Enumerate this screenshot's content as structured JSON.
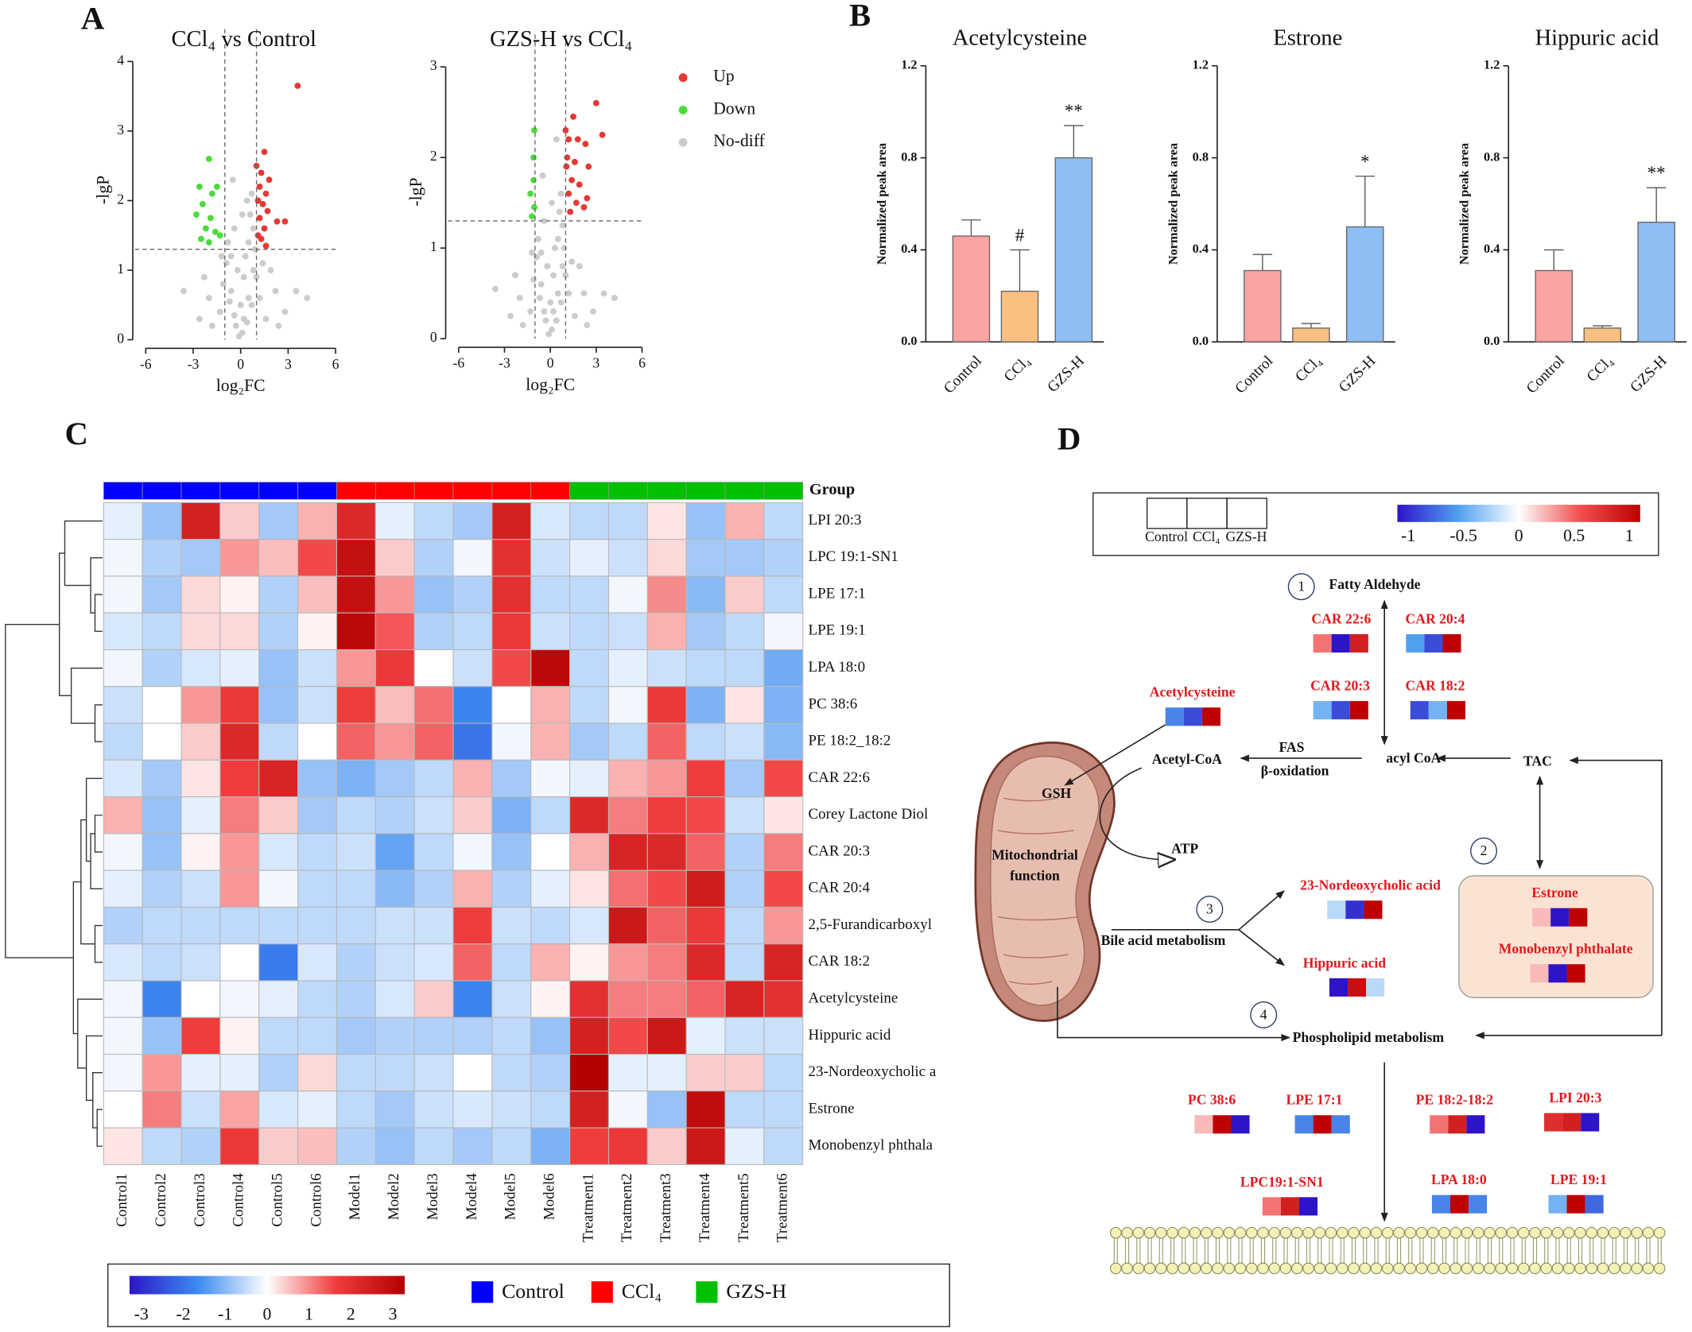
{
  "panel_labels": [
    "A",
    "B",
    "C",
    "D"
  ],
  "chart_data": [
    {
      "type": "scatter",
      "title": "CCl₄ vs Control",
      "x_label": "log₂FC",
      "y_label": "-lgP",
      "xlim": [
        -6,
        6
      ],
      "xticks": [
        -6,
        -3,
        0,
        3,
        6
      ],
      "ylim": [
        0,
        4
      ],
      "yticks": [
        0,
        1,
        2,
        3,
        4
      ],
      "thresholds": {
        "x": [
          -1,
          1
        ],
        "y": 1.3
      },
      "series": [
        {
          "color": "#cccccc",
          "x": [
            -0.3,
            0.2,
            0.5,
            -0.6,
            0.8,
            -0.9,
            0.1,
            -0.1,
            0.4,
            -0.4,
            0.7,
            -0.7,
            1.0,
            -1.1,
            0.9,
            -0.8,
            0.6,
            -0.5,
            0.7,
            -0.4,
            0.3,
            1.2,
            -1.3,
            1.6,
            -1.8,
            2.2,
            -2.0,
            2.8,
            3.5,
            4.2,
            -3.6,
            -2.6,
            0,
            0.2,
            -0.2,
            0.5,
            -0.6,
            0.8,
            1.4,
            -1.2,
            0.1,
            2.4,
            -2.3,
            1.9,
            0.4
          ],
          "values": [
            0.2,
            0.3,
            0.6,
            0.7,
            1.0,
            1.1,
            0.1,
            0.05,
            0.25,
            0.35,
            0.5,
            0.55,
            0.9,
            0.8,
            1.3,
            1.4,
            1.8,
            2.3,
            2.1,
            1.6,
            1.2,
            0.6,
            0.4,
            0.3,
            0.2,
            0.7,
            0.6,
            0.4,
            0.7,
            0.6,
            0.7,
            0.3,
            0.5,
            0.9,
            1.0,
            1.4,
            1.2,
            1.6,
            1.1,
            1.2,
            1.8,
            0.2,
            0.9,
            1.0,
            2.0
          ]
        },
        {
          "color": "#e53935",
          "x": [
            3.6,
            1.5,
            1.0,
            1.3,
            1.8,
            1.2,
            1.6,
            1.1,
            1.4,
            1.7,
            1.2,
            2.3,
            1.5,
            1.1,
            2.8,
            1.6,
            1.3
          ],
          "values": [
            3.65,
            2.7,
            2.5,
            2.4,
            2.3,
            2.2,
            2.1,
            2.0,
            1.95,
            1.85,
            1.75,
            1.7,
            1.6,
            1.5,
            1.7,
            1.35,
            1.45
          ]
        },
        {
          "color": "#4cdb3a",
          "x": [
            -2.0,
            -2.6,
            -1.8,
            -2.4,
            -1.5,
            -2.8,
            -1.9,
            -2.2,
            -1.6,
            -2.5,
            -1.3,
            -2.0
          ],
          "values": [
            2.6,
            2.2,
            2.1,
            1.95,
            2.2,
            1.8,
            1.75,
            1.6,
            1.55,
            1.45,
            1.5,
            1.4
          ]
        }
      ]
    },
    {
      "type": "scatter",
      "title": "GZS-H vs CCl₄",
      "x_label": "log₂FC",
      "y_label": "-lgP",
      "xlim": [
        -6,
        6
      ],
      "xticks": [
        -6,
        -3,
        0,
        3,
        6
      ],
      "ylim": [
        0,
        3
      ],
      "yticks": [
        0,
        1,
        2,
        3
      ],
      "thresholds": {
        "x": [
          -1,
          1
        ],
        "y": 1.3
      },
      "legend": "right",
      "series": [
        {
          "name": "Up",
          "color": "#e53935",
          "x": [
            3.0,
            1.5,
            3.4,
            1.0,
            1.2,
            1.8,
            2.3,
            1.1,
            1.6,
            2.5,
            1.05,
            1.4,
            1.9,
            2.4,
            1.2,
            1.7,
            2.2,
            1.3
          ],
          "values": [
            2.6,
            2.45,
            2.25,
            2.3,
            2.2,
            2.2,
            2.15,
            2.0,
            1.95,
            1.9,
            1.9,
            1.75,
            1.7,
            1.55,
            1.6,
            1.5,
            1.45,
            1.4
          ]
        },
        {
          "name": "Down",
          "color": "#4cdb3a",
          "x": [
            -1.05,
            -1.1,
            -1.1,
            -1.3,
            -1.05,
            -1.2
          ],
          "values": [
            2.3,
            2.0,
            1.75,
            1.6,
            1.45,
            1.35
          ]
        },
        {
          "name": "No-diff",
          "color": "#cccccc",
          "x": [
            -0.3,
            0.2,
            0.5,
            -0.6,
            0.8,
            -0.9,
            0.1,
            -0.1,
            0.4,
            -0.4,
            0.7,
            -0.7,
            1.0,
            -1.1,
            0.9,
            -0.8,
            0.6,
            -0.5,
            0.7,
            -0.4,
            0.3,
            1.2,
            -1.3,
            1.6,
            -1.8,
            2.2,
            -2.0,
            2.8,
            3.5,
            4.2,
            -3.6,
            -2.6,
            0,
            0.2,
            -0.2,
            0.5,
            -0.6,
            0.8,
            1.4,
            -1.2,
            0.1,
            2.4,
            -2.3,
            1.9,
            0.4
          ],
          "values": [
            0.2,
            0.3,
            0.5,
            0.6,
            0.8,
            0.9,
            0.1,
            0.05,
            0.2,
            0.3,
            0.4,
            0.45,
            0.7,
            0.65,
            1.0,
            1.1,
            1.4,
            1.8,
            1.6,
            1.3,
            1.0,
            0.5,
            0.3,
            0.25,
            0.15,
            0.5,
            0.45,
            0.3,
            0.5,
            0.45,
            0.55,
            0.25,
            0.4,
            0.7,
            0.8,
            1.1,
            0.95,
            1.25,
            0.85,
            0.95,
            1.5,
            0.15,
            0.7,
            0.8,
            2.2
          ]
        }
      ]
    },
    {
      "type": "bar",
      "title": "Acetylcysteine",
      "y_label": "Normalized peak area",
      "categories": [
        "Control",
        "CCl₄",
        "GZS-H"
      ],
      "values": [
        0.46,
        0.22,
        0.8
      ],
      "errors": [
        0.07,
        0.18,
        0.14
      ],
      "significance": [
        null,
        "#",
        "**"
      ],
      "colors": [
        "#f9a3a3",
        "#fbbf80",
        "#8fbef5"
      ],
      "ylim": [
        0,
        1.2
      ],
      "yticks": [
        {
          "value": 0,
          "label": "0.0"
        },
        0.4,
        0.8,
        1.2
      ]
    },
    {
      "type": "bar",
      "title": "Estrone",
      "y_label": "Normalized peak area",
      "categories": [
        "Control",
        "CCl₄",
        "GZS-H"
      ],
      "values": [
        0.31,
        0.06,
        0.5
      ],
      "errors": [
        0.07,
        0.02,
        0.22
      ],
      "significance": [
        null,
        null,
        "*"
      ],
      "colors": [
        "#f9a3a3",
        "#fbbf80",
        "#8fbef5"
      ],
      "ylim": [
        0,
        1.2
      ],
      "yticks": [
        {
          "value": 0,
          "label": "0.0"
        },
        0.4,
        0.8,
        1.2
      ]
    },
    {
      "type": "bar",
      "title": "Hippuric acid",
      "y_label": "Normalized peak area",
      "categories": [
        "Control",
        "CCl₄",
        "GZS-H"
      ],
      "values": [
        0.31,
        0.06,
        0.52
      ],
      "errors": [
        0.09,
        0.01,
        0.15
      ],
      "significance": [
        null,
        null,
        "**"
      ],
      "colors": [
        "#f9a3a3",
        "#fbbf80",
        "#8fbef5"
      ],
      "ylim": [
        0,
        1.2
      ],
      "yticks": [
        {
          "value": 0,
          "label": "0.0"
        },
        0.4,
        0.8,
        1.2
      ]
    },
    {
      "type": "heatmap",
      "group_label": "Group",
      "groups": [
        {
          "name": "Control",
          "color": "#0000ff",
          "columns": [
            "Control1",
            "Control2",
            "Control3",
            "Control4",
            "Control5",
            "Control6"
          ]
        },
        {
          "name": "CCl₄",
          "color": "#ff0000",
          "columns": [
            "Model1",
            "Model2",
            "Model3",
            "Model4",
            "Model5",
            "Model6"
          ]
        },
        {
          "name": "GZS-H",
          "color": "#00c000",
          "columns": [
            "Treatment1",
            "Treatment2",
            "Treatment3",
            "Treatment4",
            "Treatment5",
            "Treatment6"
          ]
        }
      ],
      "rows": [
        "LPI 20:3",
        "LPC 19:1-SN1",
        "LPE 17:1",
        "LPE 19:1",
        "LPA 18:0",
        "PC 38:6",
        "PE 18:2_18:2",
        "CAR 22:6",
        "Corey Lactone Diol",
        "CAR 20:3",
        "CAR 20:4",
        "2,5-Furandicarboxyl",
        "CAR 18:2",
        "Acetylcysteine",
        "Hippuric acid",
        "23-Nordeoxycholic a",
        "Estrone",
        "Monobenzyl phthala"
      ],
      "values": [
        [
          -0.2,
          -0.8,
          2.2,
          0.4,
          -0.7,
          0.6,
          2,
          -0.2,
          -0.5,
          -0.7,
          2.2,
          -0.3,
          -0.5,
          -0.5,
          0.2,
          -0.8,
          0.6,
          -0.5
        ],
        [
          -0.1,
          -0.6,
          -0.7,
          0.8,
          0.5,
          1.4,
          2.6,
          0.4,
          -0.6,
          -0.1,
          1.8,
          -0.4,
          -0.2,
          -0.4,
          0.3,
          -0.7,
          -0.7,
          -0.6
        ],
        [
          -0.1,
          -0.7,
          0.3,
          0.1,
          -0.6,
          0.5,
          2.6,
          0.8,
          -0.8,
          -0.6,
          1.8,
          -0.5,
          -0.5,
          -0.1,
          0.9,
          -0.9,
          0.4,
          -0.5
        ],
        [
          -0.3,
          -0.5,
          0.3,
          0.3,
          -0.6,
          0.1,
          2.8,
          1.3,
          -0.6,
          -0.5,
          1.6,
          -0.4,
          -0.5,
          -0.4,
          0.6,
          -0.7,
          -0.5,
          -0.1
        ],
        [
          -0.1,
          -0.6,
          -0.3,
          -0.2,
          -0.8,
          -0.4,
          0.8,
          1.6,
          0,
          -0.4,
          1.4,
          2.8,
          -0.5,
          -0.2,
          -0.4,
          -0.5,
          -0.5,
          -1.1
        ],
        [
          -0.4,
          0,
          0.8,
          1.6,
          -0.8,
          -0.4,
          1.5,
          0.5,
          1.1,
          -1.6,
          0,
          0.6,
          -0.5,
          -0.1,
          1.6,
          -1,
          0.2,
          -1
        ],
        [
          -0.5,
          0,
          0.4,
          2,
          -0.5,
          0,
          1.2,
          0.8,
          1.2,
          -1.8,
          -0.1,
          0.6,
          -0.7,
          -0.5,
          1.2,
          -0.5,
          -0.4,
          -0.9
        ],
        [
          -0.3,
          -0.7,
          0.2,
          1.5,
          2.1,
          -0.8,
          -1,
          -0.7,
          -0.5,
          0.6,
          -0.7,
          -0.1,
          -0.2,
          0.6,
          0.8,
          1.5,
          -0.7,
          1.4
        ],
        [
          0.6,
          -0.8,
          -0.2,
          1,
          0.4,
          -0.7,
          -0.5,
          -0.6,
          -0.4,
          0.4,
          -1,
          -0.5,
          2,
          1,
          1.5,
          1.4,
          -0.4,
          0.2
        ],
        [
          -0.1,
          -0.8,
          0.1,
          0.8,
          -0.3,
          -0.5,
          -0.4,
          -1.2,
          -0.5,
          -0.1,
          -0.8,
          0,
          0.6,
          2.1,
          2,
          1.2,
          -0.6,
          1
        ],
        [
          -0.2,
          -0.6,
          -0.4,
          0.8,
          -0.1,
          -0.5,
          -0.5,
          -0.9,
          -0.6,
          0.6,
          -0.6,
          -0.2,
          0.2,
          1.1,
          1.4,
          2.3,
          -0.6,
          1.4
        ],
        [
          -0.6,
          -0.5,
          -0.5,
          -0.5,
          -0.5,
          -0.5,
          -0.5,
          -0.4,
          -0.4,
          1.5,
          -0.4,
          -0.5,
          -0.3,
          2.4,
          1.2,
          1.6,
          -0.5,
          0.8
        ],
        [
          -0.3,
          -0.5,
          -0.4,
          0,
          -1.7,
          -0.3,
          -0.6,
          -0.4,
          -0.3,
          1.2,
          -0.5,
          0.6,
          0.1,
          0.8,
          1,
          2,
          -0.5,
          2.1
        ],
        [
          -0.1,
          -1.6,
          0,
          -0.1,
          -0.2,
          -0.5,
          -0.6,
          -0.3,
          0.4,
          -1.6,
          -0.4,
          0.1,
          1.8,
          1,
          1,
          1.2,
          2.1,
          1.8
        ],
        [
          -0.1,
          -0.8,
          1.5,
          0.1,
          -0.5,
          -0.5,
          -0.7,
          -0.6,
          -0.6,
          -0.6,
          -0.5,
          -0.8,
          2.2,
          1.4,
          2.4,
          -0.2,
          -0.4,
          -0.4
        ],
        [
          -0.1,
          0.8,
          -0.2,
          -0.2,
          -0.6,
          0.3,
          -0.5,
          -0.5,
          -0.4,
          0,
          -0.5,
          -0.6,
          3,
          -0.2,
          -0.2,
          0.4,
          0.4,
          -0.5
        ],
        [
          0,
          1,
          -0.4,
          0.7,
          -0.3,
          -0.2,
          -0.5,
          -0.7,
          -0.4,
          -0.3,
          -0.4,
          -0.5,
          2.2,
          -0.1,
          -0.8,
          2.7,
          -0.5,
          -0.5
        ],
        [
          0.2,
          -0.5,
          -0.6,
          1.6,
          0.4,
          0.5,
          -0.6,
          -0.8,
          -0.5,
          -0.7,
          -0.5,
          -1,
          1.5,
          1.6,
          0.4,
          2.4,
          -0.2,
          -0.5
        ]
      ],
      "zlim": [
        -3,
        3
      ],
      "zticks": [
        -3,
        -2,
        -1,
        0,
        1,
        2,
        3
      ],
      "colorscale": [
        "#2b17c8",
        "#3c8cf0",
        "#ffffff",
        "#f03c3c",
        "#b40000"
      ]
    }
  ],
  "diagram": {
    "legend": {
      "cells": [
        "Control",
        "CCl₄",
        "GZS-H"
      ],
      "zlim": [
        -1,
        1
      ],
      "zticks": [
        -1,
        -0.5,
        0,
        0.5,
        1
      ],
      "colorscale": [
        "#2d14c8",
        "#50a0f0",
        "#ffffff",
        "#f05050",
        "#be0000"
      ]
    },
    "metabolites": [
      {
        "name": "Acetylcysteine",
        "values": [
          -0.6,
          -0.8,
          1
        ]
      },
      {
        "name": "CAR 22:6",
        "values": [
          0.4,
          -1,
          0.8
        ]
      },
      {
        "name": "CAR 20:4",
        "values": [
          -0.5,
          -0.8,
          1
        ]
      },
      {
        "name": "CAR 20:3",
        "values": [
          -0.4,
          -0.8,
          1
        ]
      },
      {
        "name": "CAR 18:2",
        "values": [
          -0.8,
          -0.4,
          1
        ]
      },
      {
        "name": "23-Nordeoxycholic acid",
        "values": [
          -0.2,
          -0.9,
          1
        ]
      },
      {
        "name": "Hippuric acid",
        "values": [
          -1,
          0.9,
          -0.2
        ]
      },
      {
        "name": "Estrone",
        "values": [
          0.2,
          -1,
          1
        ]
      },
      {
        "name": "Monobenzyl phthalate",
        "values": [
          0.2,
          -1,
          1
        ]
      },
      {
        "name": "PC 38:6",
        "values": [
          0.2,
          1,
          -1
        ]
      },
      {
        "name": "LPE 17:1",
        "values": [
          -0.6,
          1,
          -0.6
        ]
      },
      {
        "name": "PE 18:2-18:2",
        "values": [
          0.4,
          0.8,
          -1
        ]
      },
      {
        "name": "LPI 20:3",
        "values": [
          0.7,
          0.8,
          -1
        ]
      },
      {
        "name": "LPC19:1-SN1",
        "values": [
          0.4,
          0.8,
          -1
        ]
      },
      {
        "name": "LPA 18:0",
        "values": [
          -0.6,
          1,
          -0.6
        ]
      },
      {
        "name": "LPE 19:1",
        "values": [
          -0.4,
          1,
          -0.7
        ]
      }
    ],
    "labels": {
      "fatty_aldehyde": "Fatty Aldehyde",
      "fas": "FAS",
      "beta_oxidation": "β-oxidation",
      "acetyl_coa": "Acetyl-CoA",
      "acyl_coa": "acyl CoA",
      "tac": "TAC",
      "gsh": "GSH",
      "mito_1": "Mitochondrial",
      "mito_2": "function",
      "atp": "ATP",
      "bile": "Bile acid metabolism",
      "phospholipid": "Phospholipid metabolism"
    },
    "steps": [
      "1",
      "2",
      "3",
      "4"
    ]
  }
}
